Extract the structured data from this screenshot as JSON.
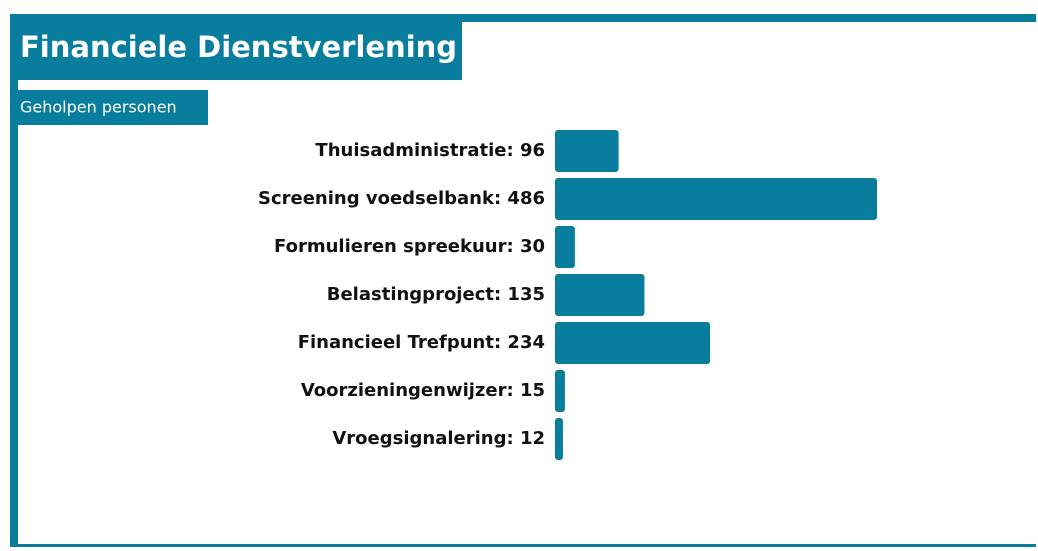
{
  "chart_data": {
    "type": "bar",
    "orientation": "horizontal",
    "title": "Financiele Dienstverlening",
    "subtitle": "Geholpen personen",
    "categories": [
      "Thuisadministratie: 96",
      "Screening voedselbank: 486",
      "Formulieren spreekuur: 30",
      "Belastingproject: 135",
      "Financieel Trefpunt: 234",
      "Voorzieningenwijzer: 15",
      "Vroegsignalering: 12"
    ],
    "values": [
      96,
      486,
      30,
      135,
      234,
      15,
      12
    ],
    "color": "#087d9e"
  }
}
